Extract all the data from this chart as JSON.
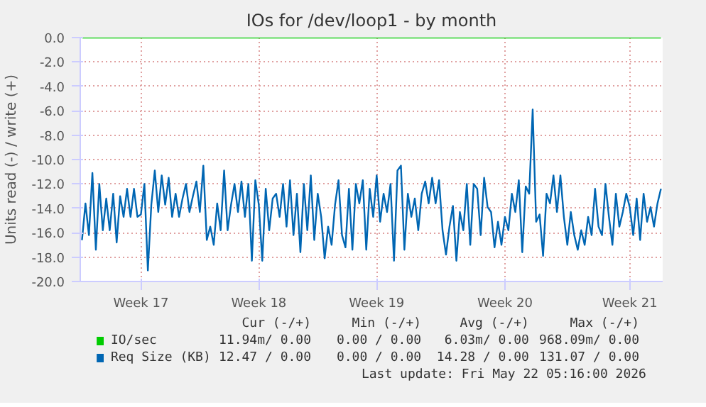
{
  "chart_data": {
    "type": "line",
    "title": "IOs for /dev/loop1 - by month",
    "ylabel": "Units read (-) / write (+)",
    "categories": [
      null,
      null,
      null,
      null,
      null,
      null,
      null,
      null,
      null,
      null,
      null,
      null,
      null,
      null,
      null,
      null,
      null,
      "Week 17",
      null,
      null,
      null,
      null,
      null,
      null,
      null,
      null,
      null,
      null,
      null,
      null,
      null,
      null,
      null,
      null,
      null,
      null,
      null,
      null,
      null,
      null,
      null,
      null,
      null,
      null,
      null,
      null,
      null,
      null,
      null,
      null,
      null,
      "Week 18",
      null,
      null,
      null,
      null,
      null,
      null,
      null,
      null,
      null,
      null,
      null,
      null,
      null,
      null,
      null,
      null,
      null,
      null,
      null,
      null,
      null,
      null,
      null,
      null,
      null,
      null,
      null,
      null,
      null,
      null,
      null,
      null,
      null,
      "Week 19",
      null,
      null,
      null,
      null,
      null,
      null,
      null,
      null,
      null,
      null,
      null,
      null,
      null,
      null,
      null,
      null,
      null,
      null,
      null,
      null,
      null,
      null,
      null,
      null,
      null,
      null,
      null,
      null,
      null,
      null,
      null,
      null,
      null,
      null,
      null,
      null,
      "Week 20",
      null,
      null,
      null,
      null,
      null,
      null,
      null,
      null,
      null,
      null,
      null,
      null,
      null,
      null,
      null,
      null,
      null,
      null,
      null,
      null,
      null,
      null,
      null,
      null,
      null,
      null,
      null,
      null,
      null,
      null,
      null,
      null,
      null,
      null,
      null,
      "Week 21",
      null,
      null,
      null,
      null,
      null,
      null,
      null,
      null,
      null
    ],
    "ylim": [
      -20,
      0
    ],
    "yticks": [
      {
        "value": 0,
        "label": "0.0"
      },
      {
        "value": -2,
        "label": "-2.0"
      },
      {
        "value": -4,
        "label": "-4.0"
      },
      {
        "value": -6,
        "label": "-6.0"
      },
      {
        "value": -8,
        "label": "-8.0"
      },
      {
        "value": -10,
        "label": "-10.0"
      },
      {
        "value": -12,
        "label": "-12.0"
      },
      {
        "value": -14,
        "label": "-14.0"
      },
      {
        "value": -16,
        "label": "-16.0"
      },
      {
        "value": -18,
        "label": "-18.0"
      },
      {
        "value": -20,
        "label": "-20.0"
      }
    ],
    "grid": true,
    "legend": "bottom",
    "marker": "none",
    "line_style": "solid",
    "series": [
      {
        "name": "IO/sec",
        "color": "#00cc00",
        "values": [
          0,
          0,
          0,
          0,
          0,
          0,
          0,
          0,
          0,
          0,
          0,
          0,
          0,
          0,
          0,
          0,
          0,
          0,
          0,
          0,
          0,
          0,
          0,
          0,
          0,
          0,
          0,
          0,
          0,
          0,
          0,
          0,
          0,
          0,
          0,
          0,
          0,
          0,
          0,
          0,
          0,
          0,
          0,
          0,
          0,
          0,
          0,
          0,
          0,
          0,
          0,
          0,
          0,
          0,
          0,
          0,
          0,
          0,
          0,
          0,
          0,
          0,
          0,
          0,
          0,
          0,
          0,
          0,
          0,
          0,
          0,
          0,
          0,
          0,
          0,
          0,
          0,
          0,
          0,
          0,
          0,
          0,
          0,
          0,
          0,
          0,
          0,
          0,
          0,
          0,
          0,
          0,
          0,
          0,
          0,
          0,
          0,
          0,
          0,
          0,
          0,
          0,
          0,
          0,
          0,
          0,
          0,
          0,
          0,
          0,
          0,
          0,
          0,
          0,
          0,
          0,
          0,
          0,
          0,
          0,
          0,
          0,
          0,
          0,
          0,
          0,
          0,
          0,
          0,
          0,
          0,
          0,
          0,
          0,
          0,
          0,
          0,
          0,
          0,
          0,
          0,
          0,
          0,
          0,
          0,
          0,
          0,
          0,
          0,
          0,
          0,
          0,
          0,
          0,
          0,
          0,
          0,
          0,
          0,
          0,
          0,
          0,
          0,
          0,
          0,
          0,
          0,
          0
        ]
      },
      {
        "name": "Req Size (KB)",
        "color": "#0066b3",
        "values": [
          -16.6,
          -13.6,
          -16.2,
          -11.1,
          -17.4,
          -12.0,
          -15.8,
          -13.2,
          -15.8,
          -12.8,
          -16.8,
          -13.0,
          -14.7,
          -12.4,
          -14.7,
          -12.4,
          -14.7,
          -14.5,
          -12.0,
          -19.1,
          -13.7,
          -10.9,
          -14.3,
          -11.3,
          -13.7,
          -11.5,
          -14.7,
          -12.8,
          -14.7,
          -13.2,
          -12.0,
          -14.3,
          -13.0,
          -11.8,
          -14.3,
          -10.5,
          -16.6,
          -15.5,
          -17.0,
          -13.6,
          -15.8,
          -10.9,
          -15.8,
          -13.7,
          -12.0,
          -14.3,
          -11.8,
          -14.7,
          -12.0,
          -18.3,
          -11.7,
          -13.7,
          -18.3,
          -12.4,
          -15.8,
          -13.2,
          -12.8,
          -14.7,
          -12.0,
          -15.5,
          -11.7,
          -16.2,
          -12.8,
          -17.6,
          -12.0,
          -15.8,
          -11.3,
          -16.6,
          -12.8,
          -14.7,
          -18.1,
          -15.5,
          -17.0,
          -13.7,
          -11.7,
          -16.2,
          -17.2,
          -12.4,
          -17.4,
          -12.0,
          -13.6,
          -11.7,
          -17.4,
          -12.4,
          -14.7,
          -11.3,
          -15.1,
          -12.8,
          -14.3,
          -12.0,
          -18.3,
          -10.9,
          -10.5,
          -17.4,
          -12.8,
          -14.7,
          -13.2,
          -15.8,
          -12.8,
          -11.8,
          -13.6,
          -11.5,
          -13.6,
          -11.7,
          -15.8,
          -17.8,
          -15.5,
          -13.8,
          -18.3,
          -14.3,
          -15.8,
          -12.0,
          -17.0,
          -12.0,
          -12.4,
          -16.2,
          -11.5,
          -13.9,
          -14.3,
          -17.2,
          -15.1,
          -17.0,
          -14.7,
          -15.8,
          -12.8,
          -14.3,
          -11.7,
          -17.6,
          -12.2,
          -12.8,
          -5.9,
          -15.1,
          -14.5,
          -17.9,
          -12.8,
          -13.6,
          -11.3,
          -14.3,
          -11.3,
          -14.7,
          -17.0,
          -14.3,
          -16.2,
          -17.4,
          -15.8,
          -17.0,
          -14.7,
          -16.2,
          -12.4,
          -15.5,
          -16.2,
          -12.0,
          -14.7,
          -17.0,
          -12.8,
          -15.5,
          -14.3,
          -12.8,
          -13.9,
          -16.2,
          -13.2,
          -16.6,
          -12.8,
          -15.1,
          -13.9,
          -15.5,
          -13.6,
          -12.4
        ]
      }
    ],
    "annotations": [
      "Cur (-/+)",
      "Min (-/+)",
      "Avg (-/+)",
      "Max (-/+)",
      "11.94m/ 0.00",
      "0.00 / 0.00",
      "6.03m/ 0.00",
      "968.09m/ 0.00",
      "12.47 / 0.00",
      "0.00 / 0.00",
      "14.28 / 0.00",
      "131.07 / 0.00",
      "Last update: Fri May 22 05:16:00 2026"
    ]
  }
}
